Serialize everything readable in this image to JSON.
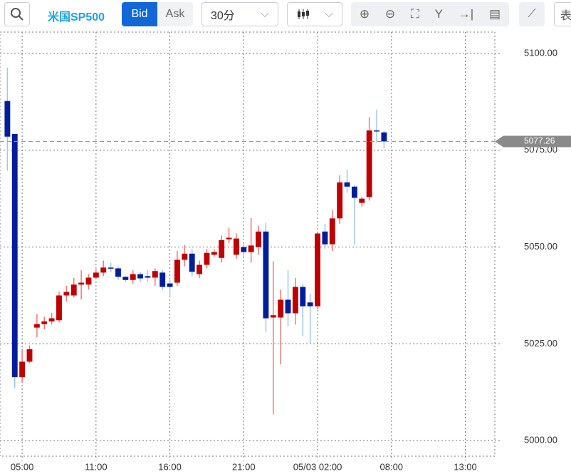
{
  "toolbar": {
    "symbol": "米国SP500",
    "bid": "Bid",
    "ask": "Ask",
    "interval": "30分",
    "extra": "表"
  },
  "chart_data": {
    "type": "candlestick",
    "x": [
      0,
      1,
      2,
      3,
      4,
      5,
      6,
      7,
      8,
      9,
      10,
      11,
      12,
      13,
      14,
      15,
      16,
      17,
      18,
      19,
      20,
      21,
      22,
      23,
      24,
      25,
      26,
      27,
      28,
      29,
      30,
      31,
      32,
      33,
      34,
      35,
      36,
      37,
      38,
      39,
      40,
      41,
      42,
      43,
      44,
      45,
      46,
      47,
      48,
      49,
      50,
      51
    ],
    "open": [
      5087.7,
      5079.2,
      5016.4,
      5020.4,
      5029.2,
      5030.1,
      5030.8,
      5031.1,
      5037.5,
      5037.5,
      5040.3,
      5040.3,
      5042.1,
      5043.4,
      5044.7,
      5044.5,
      5042.3,
      5041.5,
      5043,
      5042.5,
      5042.1,
      5043.4,
      5040.6,
      5040.8,
      5046.7,
      5048.3,
      5043,
      5045.4,
      5048,
      5047.2,
      5052,
      5048,
      5050,
      5048.7,
      5050,
      5054,
      5031.8,
      5031.8,
      5036.4,
      5032.9,
      5039.7,
      5035.7,
      5034.7,
      5054,
      5050.7,
      5057.4,
      5066.7,
      5065.6,
      5061.4,
      5062.9,
      5080.1,
      5079.6
    ],
    "high": [
      5096.3,
      5079.2,
      5023.7,
      5024.6,
      5032.7,
      5032,
      5033,
      5038.5,
      5040,
      5042,
      5044,
      5043,
      5044.3,
      5046.5,
      5046,
      5045,
      5042.5,
      5044,
      5043.5,
      5044,
      5044.5,
      5044,
      5041.5,
      5049,
      5050.5,
      5049.5,
      5046.5,
      5049.5,
      5049.5,
      5053,
      5055,
      5053.5,
      5051,
      5057.5,
      5055.5,
      5056.3,
      5046.3,
      5039,
      5044,
      5042,
      5040.5,
      5038,
      5054,
      5056,
      5059.5,
      5068.5,
      5070,
      5066,
      5063,
      5083.5,
      5085.5,
      5080
    ],
    "low": [
      5069.7,
      5013.6,
      5014.9,
      5020,
      5026.7,
      5028.8,
      5030,
      5030.5,
      5036,
      5037,
      5036.5,
      5039,
      5041.7,
      5042.5,
      5043.5,
      5041.5,
      5041,
      5040.5,
      5041,
      5041,
      5040,
      5039,
      5036.9,
      5040,
      5045,
      5042.5,
      5042,
      5044.5,
      5047.5,
      5046,
      5051,
      5047,
      5047.5,
      5046,
      5048,
      5028,
      5006.8,
      5019.7,
      5029.5,
      5030,
      5027,
      5025,
      5034,
      5049.5,
      5049,
      5056,
      5064,
      5050.5,
      5060.5,
      5062,
      5077,
      5075.5
    ],
    "close": [
      5078.5,
      5016.4,
      5020.4,
      5023.6,
      5030.1,
      5030.8,
      5031.6,
      5037.5,
      5038.4,
      5040.3,
      5040.8,
      5042.1,
      5043.4,
      5044.7,
      5044.5,
      5042.3,
      5041.5,
      5043,
      5041.9,
      5042.1,
      5043.8,
      5039.7,
      5039.7,
      5046.7,
      5048.3,
      5043.6,
      5045.4,
      5048.5,
      5048.7,
      5051.8,
      5052.4,
      5052.2,
      5048.7,
      5050.4,
      5054,
      5031.6,
      5032.4,
      5036.4,
      5032.9,
      5039.7,
      5034.7,
      5034.7,
      5053.5,
      5050.7,
      5057.4,
      5066.7,
      5065.6,
      5062.7,
      5062.5,
      5080.1,
      5080,
      5077.26
    ],
    "up_color": "#c00000",
    "down_color": "#001e9c",
    "up_wick_color": "#f07878",
    "down_wick_color": "#9cc8f0",
    "last_price": 5077.26,
    "xlim": [
      -1,
      66
    ],
    "xticks": [
      {
        "value": 2,
        "label": "05:00"
      },
      {
        "value": 12,
        "label": "11:00"
      },
      {
        "value": 22,
        "label": "16:00"
      },
      {
        "value": 32,
        "label": "21:00"
      },
      {
        "value": 42,
        "label": "05/03 02:00"
      },
      {
        "value": 52,
        "label": "08:00"
      },
      {
        "value": 62,
        "label": "13:00"
      }
    ],
    "ylim": [
      4996,
      5105.5
    ],
    "yticks": [
      {
        "value": 5000,
        "label": "5000.00"
      },
      {
        "value": 5025,
        "label": "5025.00"
      },
      {
        "value": 5050,
        "label": "5050.00"
      },
      {
        "value": 5075,
        "label": "5075.00"
      },
      {
        "value": 5100,
        "label": "5100.00"
      }
    ],
    "grid": true
  }
}
